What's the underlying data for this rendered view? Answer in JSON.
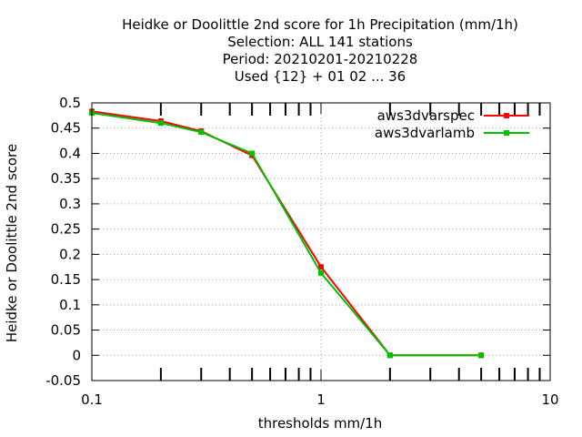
{
  "chart_data": {
    "type": "line",
    "title_lines": [
      "Heidke or Doolittle 2nd score  for 1h Precipitation (mm/1h)",
      "Selection: ALL    141 stations",
      "Period: 20210201-20210228",
      "Used {12} + 01 02 ... 36"
    ],
    "xlabel": "thresholds mm/1h",
    "ylabel": "Heidke or Doolittle 2nd score",
    "x_scale": "log",
    "xlim": [
      0.1,
      10
    ],
    "ylim": [
      -0.05,
      0.5
    ],
    "x_tick_labels": [
      "0.1",
      "1",
      "10"
    ],
    "y_tick_labels": [
      "-0.05",
      "0",
      "0.05",
      "0.1",
      "0.15",
      "0.2",
      "0.25",
      "0.3",
      "0.35",
      "0.4",
      "0.45",
      "0.5"
    ],
    "grid": true,
    "legend_position": "top-right",
    "series": [
      {
        "name": "aws3dvarspec",
        "color": "#ff0000",
        "x": [
          0.1,
          0.2,
          0.3,
          0.5,
          1,
          2,
          5
        ],
        "y": [
          0.483,
          0.464,
          0.444,
          0.396,
          0.175,
          0.0,
          0.0
        ]
      },
      {
        "name": "aws3dvarlamb",
        "color": "#00c000",
        "x": [
          0.1,
          0.2,
          0.3,
          0.5,
          1,
          2,
          5
        ],
        "y": [
          0.48,
          0.46,
          0.442,
          0.4,
          0.163,
          0.0,
          0.0
        ]
      }
    ]
  }
}
